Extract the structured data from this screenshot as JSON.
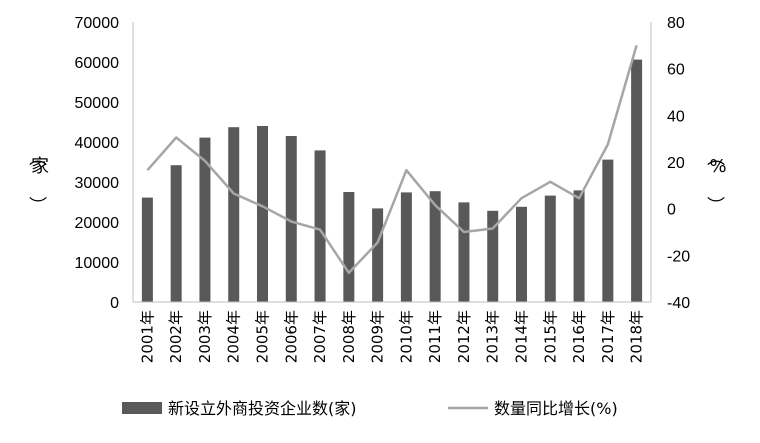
{
  "chart_data": {
    "type": "bar",
    "categories": [
      "2001年",
      "2002年",
      "2003年",
      "2004年",
      "2005年",
      "2006年",
      "2007年",
      "2008年",
      "2009年",
      "2010年",
      "2011年",
      "2012年",
      "2013年",
      "2014年",
      "2015年",
      "2016年",
      "2017年",
      "2018年"
    ],
    "series": [
      {
        "name": "新设立外商投资企业数(家)",
        "type": "bar",
        "axis": "left",
        "color": "#595959",
        "values": [
          26100,
          34200,
          41100,
          43700,
          44000,
          41500,
          37900,
          27500,
          23400,
          27400,
          27700,
          24900,
          22800,
          23800,
          26600,
          27900,
          35600,
          60600
        ]
      },
      {
        "name": "数量同比增长(%)",
        "type": "line",
        "axis": "right",
        "color": "#a6a6a6",
        "values": [
          16.5,
          30.5,
          20.5,
          6.5,
          1,
          -5.5,
          -9,
          -27.5,
          -14.5,
          16.5,
          1.5,
          -10,
          -8.5,
          4.5,
          11.5,
          4.5,
          27.5,
          70
        ]
      }
    ],
    "y_left": {
      "ticks": [
        "0",
        "10000",
        "20000",
        "30000",
        "40000",
        "50000",
        "60000",
        "70000"
      ],
      "ylim": [
        0,
        70000
      ],
      "label": "（家）"
    },
    "y_right": {
      "ticks": [
        "-40",
        "-20",
        "0",
        "20",
        "40",
        "60",
        "80"
      ],
      "ylim": [
        -40,
        80
      ],
      "label": "（%）"
    },
    "legend_position": "bottom",
    "grid": false
  }
}
